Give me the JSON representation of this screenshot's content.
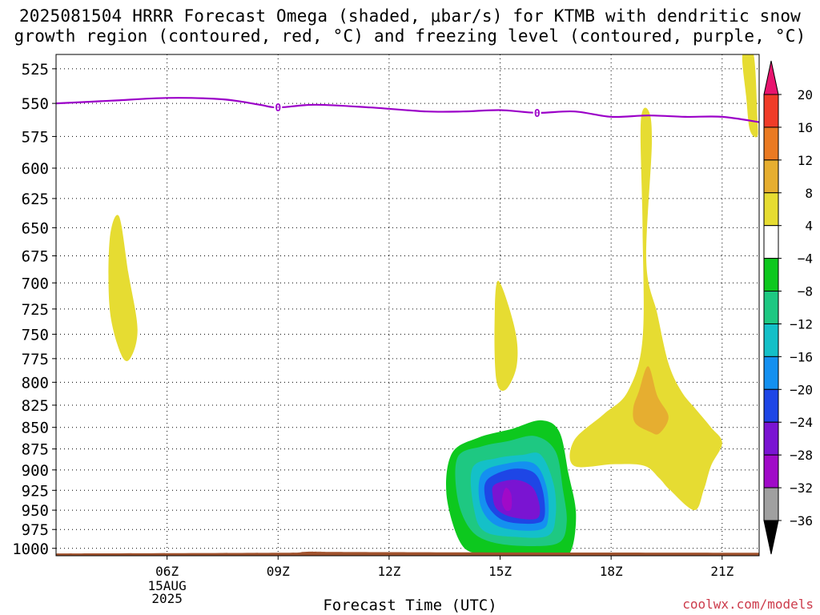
{
  "chart_data": {
    "type": "heatmap",
    "title": "2025081504 HRRR Forecast Omega (shaded, μbar/s) for KTMB with dendritic snow growth region (contoured, red, °C) and freezing level (contoured, purple, °C)",
    "title_lines": [
      "2025081504 HRRR Forecast Omega (shaded, μbar/s) for KTMB with dendritic snow",
      "growth region (contoured, red, °C) and freezing level (contoured, purple, °C)"
    ],
    "xlabel": "Forecast Time (UTC)",
    "x_ticks": [
      "06Z",
      "09Z",
      "12Z",
      "15Z",
      "18Z",
      "21Z"
    ],
    "x_tick_hours": [
      6,
      9,
      12,
      15,
      18,
      21
    ],
    "x_date_label": [
      "15AUG",
      "2025"
    ],
    "xlim_hours": [
      3.0,
      22.0
    ],
    "ylabel": "",
    "y_ticks": [
      525,
      550,
      575,
      600,
      625,
      650,
      675,
      700,
      725,
      750,
      775,
      800,
      825,
      850,
      875,
      900,
      925,
      950,
      975,
      1000
    ],
    "ylim_hPa": [
      1010,
      515
    ],
    "y_scale": "log",
    "grid": true,
    "colorbar": {
      "labels": [
        "20",
        "16",
        "12",
        "8",
        "4",
        "−4",
        "−8",
        "−12",
        "−16",
        "−20",
        "−24",
        "−28",
        "−32",
        "−36"
      ],
      "levels": [
        20,
        16,
        12,
        8,
        4,
        -4,
        -8,
        -12,
        -16,
        -20,
        -24,
        -28,
        -32,
        -36
      ],
      "colors": [
        "#e8146e",
        "#f03c28",
        "#ea7a22",
        "#e6ae30",
        "#e6dc32",
        "#ffffff",
        "#0dc81e",
        "#1ec882",
        "#14c0c8",
        "#1490f0",
        "#1e46e6",
        "#7a14d2",
        "#a00ac8",
        "#a0a0a0",
        "#000000"
      ]
    },
    "freezing_level": {
      "label": "0",
      "color": "#9b00c8",
      "points": [
        [
          3.0,
          550
        ],
        [
          4.5,
          548
        ],
        [
          6.0,
          546
        ],
        [
          7.5,
          547
        ],
        [
          8.5,
          551
        ],
        [
          9.0,
          553
        ],
        [
          10.0,
          551
        ],
        [
          11.5,
          553
        ],
        [
          13.0,
          556
        ],
        [
          14.0,
          556
        ],
        [
          15.0,
          555
        ],
        [
          16.0,
          557
        ],
        [
          17.0,
          556
        ],
        [
          18.0,
          560
        ],
        [
          19.0,
          559
        ],
        [
          20.0,
          560
        ],
        [
          21.0,
          560
        ],
        [
          22.0,
          564
        ]
      ],
      "label_points": [
        [
          9.0,
          553
        ],
        [
          16.0,
          557
        ]
      ]
    },
    "omega_regions": [
      {
        "level": 4,
        "color": "#e6dc32",
        "points": [
          [
            4.7,
            640
          ],
          [
            4.95,
            690
          ],
          [
            5.2,
            745
          ],
          [
            5.0,
            775
          ],
          [
            4.75,
            770
          ],
          [
            4.45,
            725
          ],
          [
            4.45,
            660
          ]
        ]
      },
      {
        "level": 4,
        "color": "#e6dc32",
        "points": [
          [
            14.95,
            698
          ],
          [
            15.4,
            745
          ],
          [
            15.45,
            782
          ],
          [
            15.15,
            808
          ],
          [
            14.9,
            798
          ],
          [
            14.85,
            740
          ]
        ]
      },
      {
        "level": 4,
        "color": "#e6dc32",
        "points": [
          [
            19.0,
            555
          ],
          [
            19.1,
            580
          ],
          [
            18.95,
            680
          ],
          [
            19.25,
            730
          ],
          [
            19.55,
            780
          ],
          [
            19.9,
            810
          ],
          [
            20.3,
            830
          ],
          [
            20.7,
            850
          ],
          [
            21.0,
            868
          ],
          [
            20.7,
            895
          ],
          [
            20.5,
            925
          ],
          [
            20.25,
            950
          ],
          [
            19.6,
            925
          ],
          [
            19.3,
            910
          ],
          [
            18.9,
            895
          ],
          [
            18.1,
            893
          ],
          [
            17.0,
            895
          ],
          [
            17.0,
            865
          ],
          [
            17.8,
            835
          ],
          [
            18.45,
            810
          ],
          [
            18.85,
            755
          ],
          [
            18.85,
            650
          ],
          [
            18.8,
            565
          ]
        ]
      },
      {
        "level": 8,
        "color": "#e6ae30",
        "points": [
          [
            19.0,
            783
          ],
          [
            19.25,
            815
          ],
          [
            19.55,
            838
          ],
          [
            19.3,
            857
          ],
          [
            19.05,
            855
          ],
          [
            18.65,
            845
          ],
          [
            18.6,
            828
          ],
          [
            18.75,
            810
          ]
        ]
      },
      {
        "level": 4,
        "color": "#e6dc32",
        "points": [
          [
            21.55,
            515
          ],
          [
            21.85,
            515
          ],
          [
            21.95,
            560
          ],
          [
            21.95,
            575
          ],
          [
            21.75,
            570
          ],
          [
            21.65,
            545
          ]
        ]
      },
      {
        "level": -4,
        "color": "#0dc81e",
        "points": [
          [
            13.7,
            880
          ],
          [
            14.4,
            862
          ],
          [
            15.3,
            852
          ],
          [
            16.1,
            842
          ],
          [
            16.6,
            855
          ],
          [
            16.85,
            905
          ],
          [
            17.05,
            955
          ],
          [
            16.9,
            1005
          ],
          [
            16.4,
            1013
          ],
          [
            15.4,
            1013
          ],
          [
            14.4,
            1008
          ],
          [
            13.9,
            990
          ],
          [
            13.55,
            930
          ]
        ]
      },
      {
        "level": -8,
        "color": "#1ec882",
        "points": [
          [
            13.85,
            885
          ],
          [
            14.5,
            872
          ],
          [
            15.2,
            866
          ],
          [
            15.95,
            860
          ],
          [
            16.5,
            878
          ],
          [
            16.7,
            925
          ],
          [
            16.8,
            965
          ],
          [
            16.6,
            992
          ],
          [
            15.8,
            997
          ],
          [
            14.8,
            992
          ],
          [
            14.2,
            975
          ],
          [
            13.85,
            935
          ]
        ]
      },
      {
        "level": -12,
        "color": "#14c0c8",
        "points": [
          [
            14.25,
            898
          ],
          [
            14.9,
            886
          ],
          [
            15.6,
            882
          ],
          [
            16.1,
            882
          ],
          [
            16.45,
            918
          ],
          [
            16.5,
            958
          ],
          [
            16.3,
            983
          ],
          [
            15.5,
            985
          ],
          [
            14.6,
            978
          ],
          [
            14.3,
            950
          ]
        ]
      },
      {
        "level": -16,
        "color": "#1490f0",
        "points": [
          [
            14.5,
            905
          ],
          [
            15.1,
            893
          ],
          [
            15.9,
            892
          ],
          [
            16.25,
            920
          ],
          [
            16.3,
            960
          ],
          [
            16.1,
            975
          ],
          [
            15.3,
            975
          ],
          [
            14.75,
            965
          ],
          [
            14.45,
            940
          ]
        ]
      },
      {
        "level": -20,
        "color": "#1e46e6",
        "points": [
          [
            14.65,
            912
          ],
          [
            15.3,
            899
          ],
          [
            15.9,
            903
          ],
          [
            16.15,
            925
          ],
          [
            16.2,
            958
          ],
          [
            15.95,
            967
          ],
          [
            15.2,
            965
          ],
          [
            14.8,
            953
          ],
          [
            14.6,
            935
          ]
        ]
      },
      {
        "level": -24,
        "color": "#7a14d2",
        "points": [
          [
            14.85,
            918
          ],
          [
            15.4,
            912
          ],
          [
            15.85,
            920
          ],
          [
            16.05,
            940
          ],
          [
            16.05,
            958
          ],
          [
            15.8,
            962
          ],
          [
            15.25,
            958
          ],
          [
            14.9,
            948
          ],
          [
            14.8,
            932
          ]
        ]
      },
      {
        "level": -28,
        "color": "#a00ac8",
        "points": [
          [
            15.15,
            922
          ],
          [
            15.3,
            930
          ],
          [
            15.3,
            948
          ],
          [
            15.15,
            950
          ],
          [
            15.05,
            938
          ]
        ]
      }
    ],
    "surface_band": {
      "color": "#a0522d",
      "points": [
        [
          3.0,
          1007
        ],
        [
          9.0,
          1006
        ],
        [
          9.6,
          1005
        ],
        [
          10.2,
          1004
        ],
        [
          11.0,
          1005
        ],
        [
          22.0,
          1006
        ]
      ]
    }
  },
  "watermark": "coolwx.com/models"
}
